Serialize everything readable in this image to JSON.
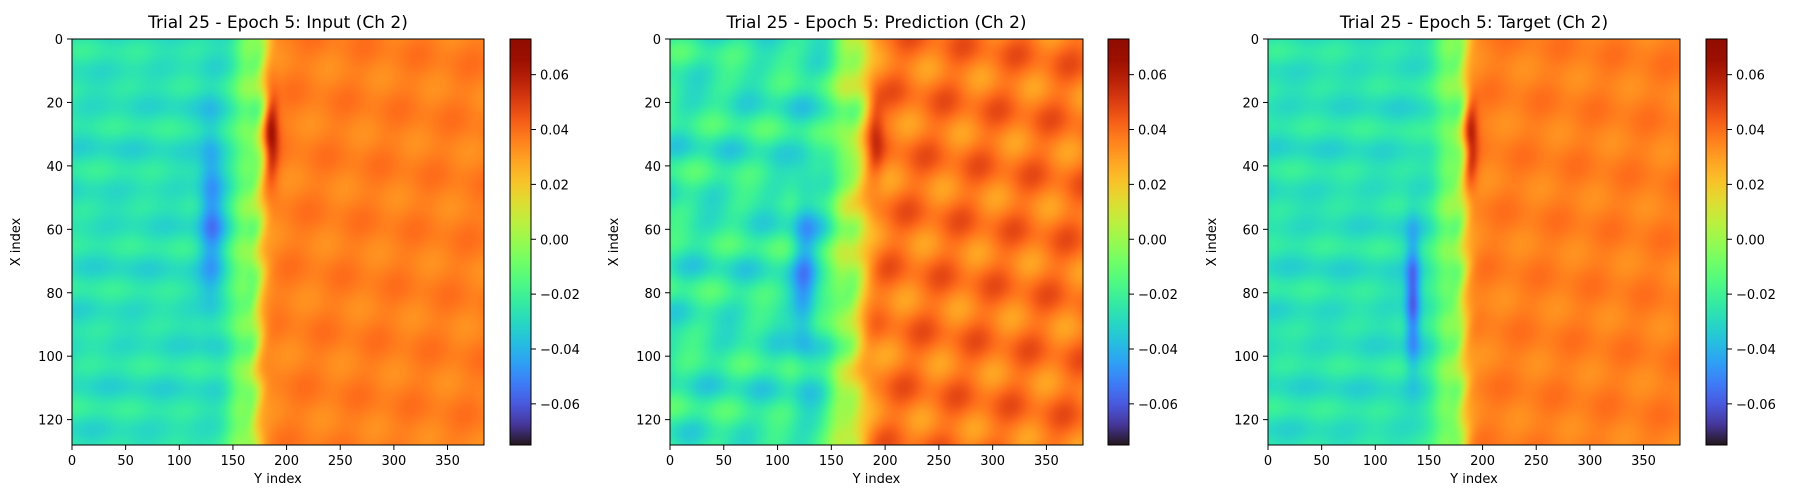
{
  "chart_data": [
    {
      "type": "heatmap",
      "title": "Trial 25 - Epoch 5: Input (Ch 2)",
      "xlabel": "Y index",
      "ylabel": "X index",
      "xlim": [
        0,
        384
      ],
      "ylim": [
        128,
        0
      ],
      "xticks": [
        0,
        50,
        100,
        150,
        200,
        250,
        300,
        350
      ],
      "yticks": [
        0,
        20,
        40,
        60,
        80,
        100,
        120
      ],
      "colormap": "turbo",
      "colorbar": {
        "range": [
          -0.075,
          0.073
        ],
        "ticks": [
          -0.06,
          -0.04,
          -0.02,
          0.0,
          0.02,
          0.04,
          0.06
        ]
      },
      "field": {
        "background_left": -0.027,
        "background_right": 0.036,
        "front_y_at_top": 178,
        "front_y_at_bottom": 170,
        "front_width": 4,
        "front_sign": 1,
        "peak": {
          "x": 30,
          "y": 185,
          "value": 0.068,
          "sx": 10,
          "sy": 5
        },
        "trough": {
          "x": 55,
          "y": 130,
          "value": -0.05,
          "sx": 20,
          "sy": 8
        },
        "waviness": 0.004
      }
    },
    {
      "type": "heatmap",
      "title": "Trial 25 - Epoch 5: Prediction (Ch 2)",
      "xlabel": "Y index",
      "ylabel": "X index",
      "xlim": [
        0,
        384
      ],
      "ylim": [
        128,
        0
      ],
      "xticks": [
        0,
        50,
        100,
        150,
        200,
        250,
        300,
        350
      ],
      "yticks": [
        0,
        20,
        40,
        60,
        80,
        100,
        120
      ],
      "colormap": "turbo",
      "colorbar": {
        "range": [
          -0.075,
          0.073
        ],
        "ticks": [
          -0.06,
          -0.04,
          -0.02,
          0.0,
          0.02,
          0.04,
          0.06
        ]
      },
      "field": {
        "background_left": -0.024,
        "background_right": 0.038,
        "front_y_at_top": 178,
        "front_y_at_bottom": 172,
        "front_width": 6,
        "front_sign": 1,
        "peak": {
          "x": 30,
          "y": 190,
          "value": 0.055,
          "sx": 10,
          "sy": 6
        },
        "trough": {
          "x": 75,
          "y": 125,
          "value": -0.045,
          "sx": 22,
          "sy": 8
        },
        "waviness": 0.01
      }
    },
    {
      "type": "heatmap",
      "title": "Trial 25 - Epoch 5: Target (Ch 2)",
      "xlabel": "Y index",
      "ylabel": "X index",
      "xlim": [
        0,
        384
      ],
      "ylim": [
        128,
        0
      ],
      "xticks": [
        0,
        50,
        100,
        150,
        200,
        250,
        300,
        350
      ],
      "yticks": [
        0,
        20,
        40,
        60,
        80,
        100,
        120
      ],
      "colormap": "turbo",
      "colorbar": {
        "range": [
          -0.075,
          0.073
        ],
        "ticks": [
          -0.06,
          -0.04,
          -0.02,
          0.0,
          0.02,
          0.04,
          0.06
        ]
      },
      "field": {
        "background_left": -0.027,
        "background_right": 0.036,
        "front_y_at_top": 182,
        "front_y_at_bottom": 180,
        "front_width": 4,
        "front_sign": 1,
        "peak": {
          "x": 32,
          "y": 188,
          "value": 0.068,
          "sx": 10,
          "sy": 5
        },
        "trough": {
          "x": 82,
          "y": 135,
          "value": -0.06,
          "sx": 14,
          "sy": 5
        },
        "waviness": 0.004
      }
    }
  ]
}
